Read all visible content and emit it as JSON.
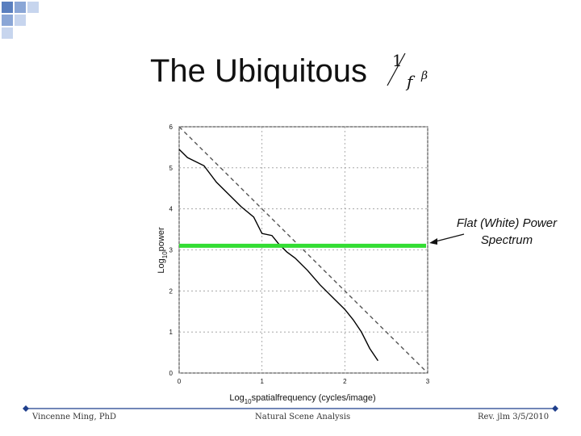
{
  "slide": {
    "title": "The Ubiquitous",
    "title_formula": {
      "numerator": "1",
      "denominator": "f",
      "exponent": "β"
    },
    "callout": "Flat (White) Power Spectrum",
    "footer": {
      "left": "Vincenne Ming, PhD",
      "center": "Natural Scene Analysis",
      "right": "Rev. jlm 3/5/2010"
    },
    "colors": {
      "accent_squares": "#5a7fbf",
      "footer_line": "#1f3f8c",
      "flat_line": "#33dd33"
    }
  },
  "chart_data": {
    "type": "line",
    "title": "",
    "xlabel": "Log10 spatialfrequency (cycles/image)",
    "ylabel": "Log10 power",
    "xlim": [
      0,
      3
    ],
    "ylim": [
      0,
      6
    ],
    "xticks": [
      "0",
      "1",
      "2",
      "3"
    ],
    "yticks": [
      "0",
      "1",
      "2",
      "3",
      "4",
      "5",
      "6"
    ],
    "grid": true,
    "series": [
      {
        "style": "solid",
        "color": "#000000",
        "x": [
          0,
          0.1,
          0.3,
          0.45,
          0.6,
          0.75,
          0.9,
          1.0,
          1.12,
          1.2,
          1.3,
          1.4,
          1.55,
          1.7,
          1.85,
          2.0,
          2.1,
          2.2,
          2.3,
          2.4
        ],
        "y": [
          5.45,
          5.25,
          5.05,
          4.65,
          4.35,
          4.05,
          3.8,
          3.4,
          3.35,
          3.15,
          2.95,
          2.8,
          2.5,
          2.15,
          1.85,
          1.55,
          1.3,
          1.0,
          0.6,
          0.3
        ]
      },
      {
        "style": "dashed",
        "color": "#555555",
        "x": [
          0,
          3
        ],
        "y": [
          6,
          0
        ]
      },
      {
        "style": "solid",
        "color": "#33dd33",
        "x": [
          0,
          3
        ],
        "y": [
          3.1,
          3.1
        ]
      }
    ]
  }
}
